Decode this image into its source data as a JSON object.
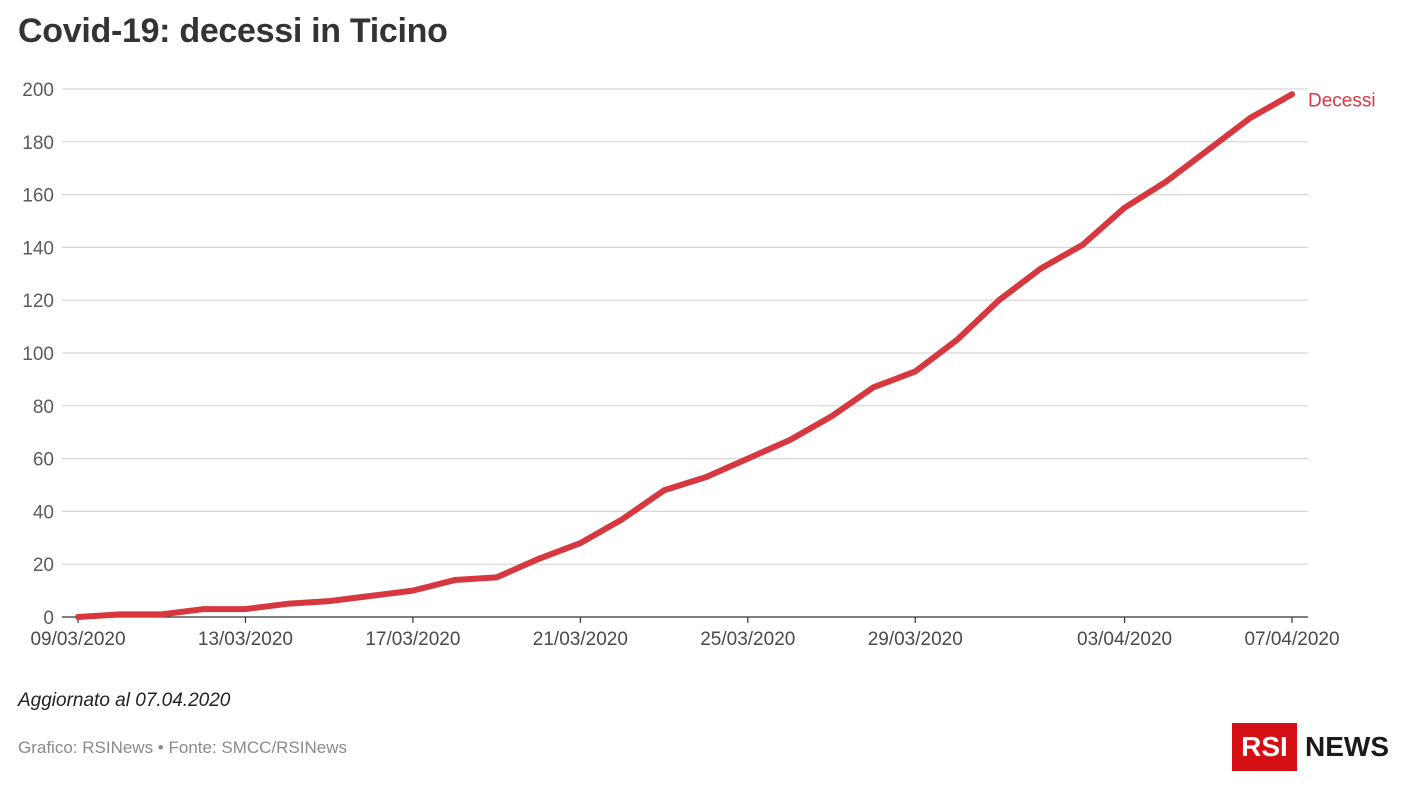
{
  "title": "Covid-19: decessi in Ticino",
  "note": "Aggiornato al 07.04.2020",
  "credits": "Grafico: RSINews • Fonte: SMCC/RSINews",
  "logo": {
    "box_text": "RSI",
    "text": "NEWS"
  },
  "colors": {
    "series": "#d7373f",
    "grid": "#d6d6d6",
    "axis": "#333333",
    "logo_red": "#d40f14"
  },
  "chart_data": {
    "type": "line",
    "title": "Covid-19: decessi in Ticino",
    "xlabel": "",
    "ylabel": "",
    "ylim": [
      0,
      200
    ],
    "yticks": [
      0,
      20,
      40,
      60,
      80,
      100,
      120,
      140,
      160,
      180,
      200
    ],
    "grid": true,
    "x": [
      "09/03/2020",
      "10/03/2020",
      "11/03/2020",
      "12/03/2020",
      "13/03/2020",
      "14/03/2020",
      "15/03/2020",
      "16/03/2020",
      "17/03/2020",
      "18/03/2020",
      "19/03/2020",
      "20/03/2020",
      "21/03/2020",
      "22/03/2020",
      "23/03/2020",
      "24/03/2020",
      "25/03/2020",
      "26/03/2020",
      "27/03/2020",
      "28/03/2020",
      "29/03/2020",
      "30/03/2020",
      "31/03/2020",
      "01/04/2020",
      "02/04/2020",
      "03/04/2020",
      "04/04/2020",
      "05/04/2020",
      "06/04/2020",
      "07/04/2020"
    ],
    "xtick_labels": [
      "09/03/2020",
      "13/03/2020",
      "17/03/2020",
      "21/03/2020",
      "25/03/2020",
      "29/03/2020",
      "03/04/2020",
      "07/04/2020"
    ],
    "series": [
      {
        "name": "Decessi",
        "values": [
          0,
          1,
          1,
          3,
          3,
          5,
          6,
          8,
          10,
          14,
          15,
          22,
          28,
          37,
          48,
          53,
          60,
          67,
          76,
          87,
          93,
          105,
          120,
          132,
          141,
          155,
          165,
          177,
          189,
          198
        ]
      }
    ]
  }
}
